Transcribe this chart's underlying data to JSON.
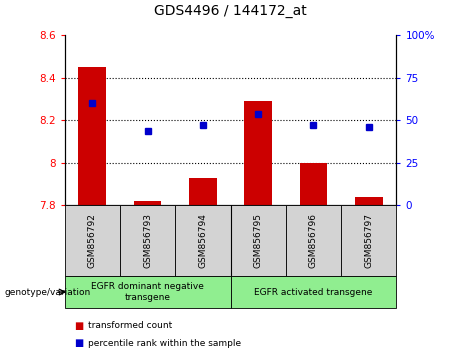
{
  "title": "GDS4496 / 144172_at",
  "samples": [
    "GSM856792",
    "GSM856793",
    "GSM856794",
    "GSM856795",
    "GSM856796",
    "GSM856797"
  ],
  "bar_bottoms": [
    7.8,
    7.8,
    7.8,
    7.8,
    7.8,
    7.8
  ],
  "bar_tops": [
    8.45,
    7.82,
    7.93,
    8.29,
    8.0,
    7.84
  ],
  "percentile_right": [
    60,
    44,
    47,
    54,
    47,
    46
  ],
  "ylim_left": [
    7.8,
    8.6
  ],
  "ylim_right": [
    0,
    100
  ],
  "yticks_left": [
    7.8,
    8.0,
    8.2,
    8.4,
    8.6
  ],
  "ytick_labels_left": [
    "7.8",
    "8",
    "8.2",
    "8.4",
    "8.6"
  ],
  "yticks_right": [
    0,
    25,
    50,
    75,
    100
  ],
  "ytick_labels_right": [
    "0",
    "25",
    "50",
    "75",
    "100%"
  ],
  "group1_label": "EGFR dominant negative\ntransgene",
  "group2_label": "EGFR activated transgene",
  "bar_color": "#CC0000",
  "dot_color": "#0000CC",
  "bar_width": 0.5,
  "legend_label_bar": "transformed count",
  "legend_label_dot": "percentile rank within the sample",
  "xlabel_area": "genotype/variation",
  "tick_area_color": "#D3D3D3",
  "group_area_color": "#90EE90",
  "grid_yticks": [
    8.0,
    8.2,
    8.4
  ]
}
